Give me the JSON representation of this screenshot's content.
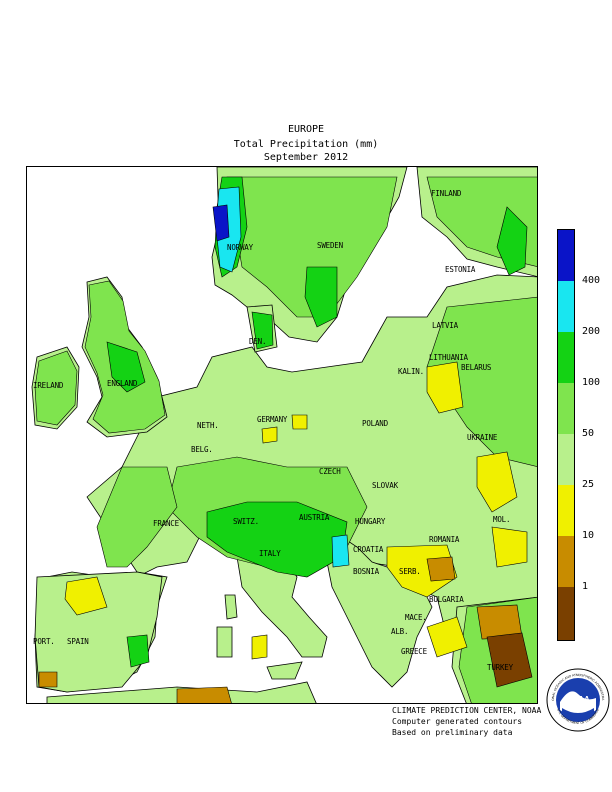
{
  "title": {
    "line1": "EUROPE",
    "line2": "Total Precipitation (mm)",
    "line3": "September 2012"
  },
  "countries": [
    {
      "key": "finland",
      "label": "FINLAND"
    },
    {
      "key": "norway",
      "label": "NORWAY"
    },
    {
      "key": "sweden",
      "label": "SWEDEN"
    },
    {
      "key": "estonia",
      "label": "ESTONIA"
    },
    {
      "key": "latvia",
      "label": "LATVIA"
    },
    {
      "key": "lithuania",
      "label": "LITHUANIA"
    },
    {
      "key": "den",
      "label": "DEN."
    },
    {
      "key": "kalin",
      "label": "KALIN."
    },
    {
      "key": "ireland",
      "label": "IRELAND"
    },
    {
      "key": "england",
      "label": "ENGLAND"
    },
    {
      "key": "belarus",
      "label": "BELARUS"
    },
    {
      "key": "neth",
      "label": "NETH."
    },
    {
      "key": "germany",
      "label": "GERMANY"
    },
    {
      "key": "poland",
      "label": "POLAND"
    },
    {
      "key": "belg",
      "label": "BELG."
    },
    {
      "key": "ukraine",
      "label": "UKRAINE"
    },
    {
      "key": "czech",
      "label": "CZECH"
    },
    {
      "key": "slovak",
      "label": "SLOVAK"
    },
    {
      "key": "france",
      "label": "FRANCE"
    },
    {
      "key": "switz",
      "label": "SWITZ."
    },
    {
      "key": "austria",
      "label": "AUSTRIA"
    },
    {
      "key": "hungary",
      "label": "HUNGARY"
    },
    {
      "key": "mol",
      "label": "MOL."
    },
    {
      "key": "romania",
      "label": "ROMANIA"
    },
    {
      "key": "italy",
      "label": "ITALY"
    },
    {
      "key": "croatia",
      "label": "CROATIA"
    },
    {
      "key": "serb",
      "label": "SERB."
    },
    {
      "key": "bosnia",
      "label": "BOSNIA"
    },
    {
      "key": "bulgaria",
      "label": "BULGARIA"
    },
    {
      "key": "port",
      "label": "PORT."
    },
    {
      "key": "spain",
      "label": "SPAIN"
    },
    {
      "key": "alb",
      "label": "ALB."
    },
    {
      "key": "mace",
      "label": "MACE."
    },
    {
      "key": "greece",
      "label": "GREECE"
    },
    {
      "key": "turkey",
      "label": "TURKEY"
    }
  ],
  "legend": {
    "labels": [
      "400",
      "200",
      "100",
      "50",
      "25",
      "10",
      "1"
    ],
    "colors": {
      "gt400": "#0a14c8",
      "200_400": "#19e6f0",
      "100_200": "#14d214",
      "50_100": "#7fe44e",
      "25_50": "#b8f08c",
      "10_25": "#f0f000",
      "1_10": "#c88c00",
      "lt1": "#7a4000"
    }
  },
  "credits": {
    "line1": "CLIMATE PREDICTION CENTER, NOAA",
    "line2": "Computer generated contours",
    "line3": "Based on preliminary data"
  },
  "logo": {
    "center_text": "NOAA",
    "ring_top": "NATIONAL OCEANIC AND ATMOSPHERIC ADMINISTRATION",
    "ring_bottom": "U.S. DEPARTMENT OF COMMERCE"
  }
}
